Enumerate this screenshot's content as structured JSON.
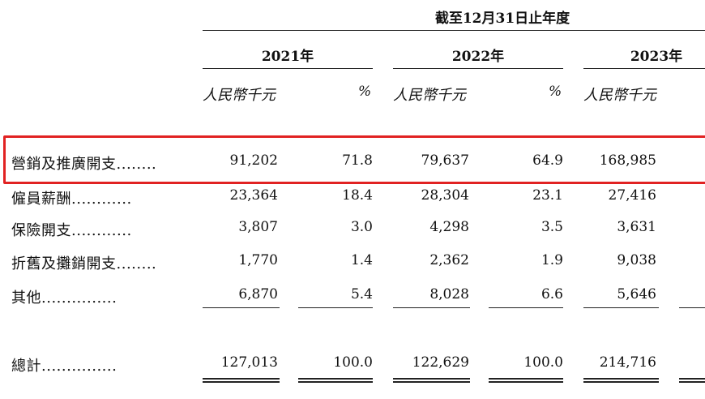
{
  "header": {
    "title": "截至12月31日止年度",
    "years": [
      "2021年",
      "2022年",
      "2023年"
    ],
    "unit": "人民幣千元",
    "pct": "%"
  },
  "rows": [
    {
      "label": "營銷及推廣開支",
      "dots": "........",
      "values": [
        "91,202",
        "71.8",
        "79,637",
        "64.9",
        "168,985"
      ]
    },
    {
      "label": "僱員薪酬",
      "dots": "............",
      "values": [
        "23,364",
        "18.4",
        "28,304",
        "23.1",
        "27,416"
      ]
    },
    {
      "label": "保險開支",
      "dots": "............",
      "values": [
        "3,807",
        "3.0",
        "4,298",
        "3.5",
        "3,631"
      ]
    },
    {
      "label": "折舊及攤銷開支",
      "dots": "........",
      "values": [
        "1,770",
        "1.4",
        "2,362",
        "1.9",
        "9,038"
      ]
    },
    {
      "label": "其他",
      "dots": "...............",
      "values": [
        "6,870",
        "5.4",
        "8,028",
        "6.6",
        "5,646"
      ]
    }
  ],
  "total": {
    "label": "總計",
    "dots": "...............",
    "values": [
      "127,013",
      "100.0",
      "122,629",
      "100.0",
      "214,716"
    ]
  }
}
